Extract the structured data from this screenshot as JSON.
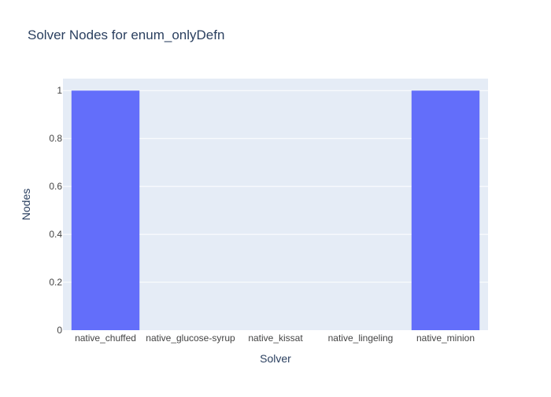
{
  "chart_data": {
    "type": "bar",
    "title": "Solver Nodes for enum_onlyDefn",
    "xlabel": "Solver",
    "ylabel": "Nodes",
    "categories": [
      "native_chuffed",
      "native_glucose-syrup",
      "native_kissat",
      "native_lingeling",
      "native_minion"
    ],
    "values": [
      1,
      0,
      0,
      0,
      1
    ],
    "ylim": [
      0,
      1.05
    ],
    "yticks": [
      0,
      0.2,
      0.4,
      0.6,
      0.8,
      1
    ],
    "ytick_labels": [
      "0",
      "0.2",
      "0.4",
      "0.6",
      "0.8",
      "1"
    ],
    "grid": true,
    "colors": {
      "bar": "#636efa",
      "plot_bg": "#e5ecf6",
      "grid": "#ffffff",
      "text": "#2a3f5f",
      "tick_text": "#444444"
    }
  }
}
